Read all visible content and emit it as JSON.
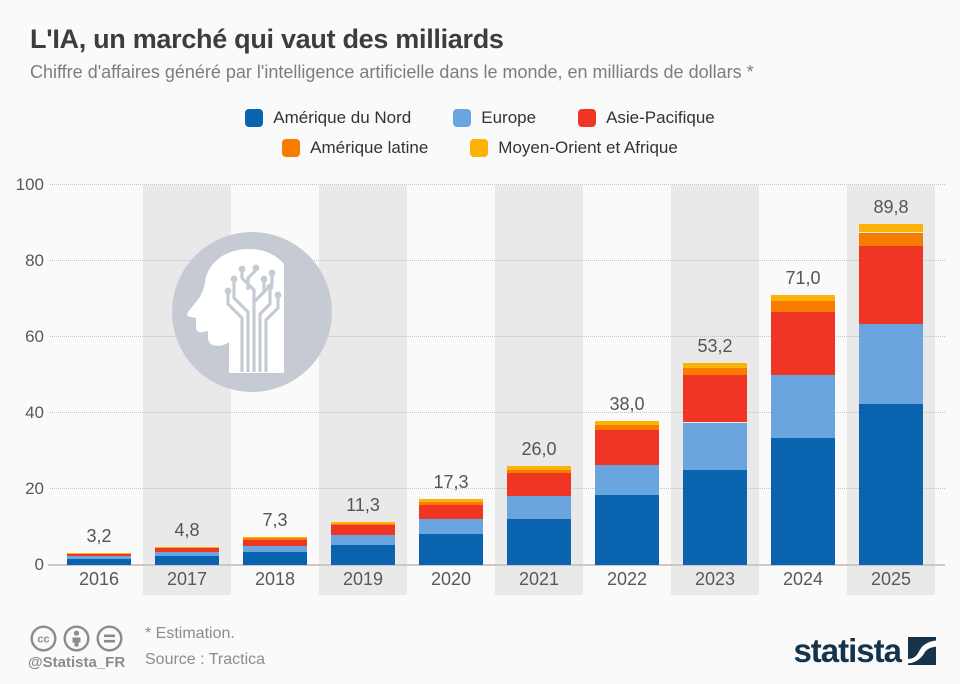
{
  "title": "L'IA, un marché qui vaut des milliards",
  "subtitle": "Chiffre d'affaires généré par l'intelligence artificielle dans le monde, en milliards de dollars *",
  "colors": {
    "north_america": "#0A63AF",
    "europe": "#6BA5E0",
    "asia_pacific": "#EF3523",
    "latin_america": "#F87C00",
    "mea": "#FCB305",
    "stripe": "#E9E9E9",
    "watermark": "#C6CBD3",
    "brand_navy": "#15334A"
  },
  "chart_data": {
    "type": "bar",
    "stacked": true,
    "title": "L'IA, un marché qui vaut des milliards",
    "xlabel": "",
    "ylabel": "",
    "ylim": [
      0,
      100
    ],
    "yticks": [
      0,
      20,
      40,
      60,
      80,
      100
    ],
    "grid": "horizontal-dotted",
    "legend_position": "top",
    "categories": [
      "2016",
      "2017",
      "2018",
      "2019",
      "2020",
      "2021",
      "2022",
      "2023",
      "2024",
      "2025"
    ],
    "series": [
      {
        "name": "Amérique du Nord",
        "color": "#0A63AF",
        "values": [
          1.65,
          2.4,
          3.4,
          5.2,
          8.2,
          12.2,
          18.3,
          25.0,
          33.5,
          42.4
        ]
      },
      {
        "name": "Europe",
        "color": "#6BA5E0",
        "values": [
          0.8,
          1.1,
          1.6,
          2.6,
          3.9,
          6.0,
          8.1,
          12.5,
          16.4,
          21.0
        ]
      },
      {
        "name": "Asie-Pacifique",
        "color": "#EF3523",
        "values": [
          0.6,
          1.1,
          1.65,
          2.6,
          3.8,
          5.9,
          9.0,
          12.4,
          16.6,
          20.6
        ]
      },
      {
        "name": "Amérique latine",
        "color": "#F87C00",
        "values": [
          0.1,
          0.13,
          0.35,
          0.5,
          0.8,
          1.0,
          1.5,
          1.9,
          3.0,
          3.5
        ]
      },
      {
        "name": "Moyen-Orient et Afrique",
        "color": "#FCB305",
        "values": [
          0.05,
          0.07,
          0.3,
          0.4,
          0.6,
          0.9,
          1.1,
          1.4,
          1.5,
          2.3
        ]
      }
    ],
    "totals_labels": [
      "3,2",
      "4,8",
      "7,3",
      "11,3",
      "17,3",
      "26,0",
      "38,0",
      "53,2",
      "71,0",
      "89,8"
    ],
    "totals_values": [
      3.2,
      4.8,
      7.3,
      11.3,
      17.3,
      26.0,
      38.0,
      53.2,
      71.0,
      89.8
    ]
  },
  "footer": {
    "estimation_note": "* Estimation.",
    "source": "Source : Tractica",
    "handle": "@Statista_FR",
    "brand": "statista"
  }
}
